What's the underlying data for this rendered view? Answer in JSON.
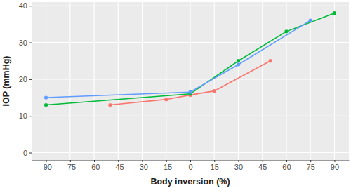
{
  "chart_data": {
    "type": "line",
    "x_label": "Body inversion (%)",
    "y_label": "IOP (mmHg)",
    "series": [
      {
        "color": "#F8766D",
        "marker": "circle",
        "x": [
          -50,
          -15,
          0,
          15,
          50
        ],
        "values": [
          13,
          14.5,
          15.7,
          16.8,
          25
        ]
      },
      {
        "color": "#00BA38",
        "marker": "circle",
        "x": [
          -90,
          0,
          30,
          60,
          90
        ],
        "values": [
          13,
          16,
          25,
          33,
          38
        ]
      },
      {
        "color": "#619CFF",
        "marker": "circle",
        "x": [
          -90,
          0,
          30,
          75
        ],
        "values": [
          15,
          16.5,
          24,
          36
        ]
      }
    ],
    "xlim": [
      -99,
      99
    ],
    "xticks": [
      -90,
      -75,
      -60,
      -45,
      -30,
      -15,
      0,
      15,
      30,
      45,
      60,
      75,
      90
    ],
    "ylim": [
      -2,
      41
    ],
    "yticks": [
      0,
      10,
      20,
      30,
      40
    ],
    "grid": true
  }
}
